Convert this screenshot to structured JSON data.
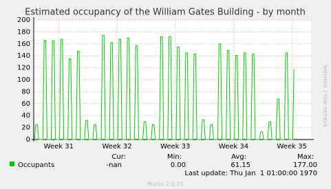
{
  "chart_data": {
    "type": "line",
    "title": "Estimated occupancy of the William Gates Building - by month",
    "side_label": "RRDTOOL / TOBI OETIKER",
    "x": [
      0.1,
      0.25,
      0.45,
      0.6,
      1.1,
      1.25,
      1.45,
      1.6,
      2.1,
      2.25,
      2.45,
      2.6,
      3.1,
      3.25,
      3.45,
      3.6,
      4.1,
      4.25,
      4.45,
      4.6,
      5.1,
      5.25,
      5.45,
      5.6,
      6.1,
      6.25,
      6.45,
      6.6,
      7.1,
      7.25,
      7.45,
      7.6,
      8.1,
      8.25,
      8.45,
      8.6,
      9.1,
      9.25,
      9.45,
      9.6,
      10.1,
      10.25,
      10.45,
      10.6,
      11.1,
      11.25,
      11.45,
      11.6,
      12.1,
      12.25,
      12.45,
      12.6,
      13.1,
      13.25,
      13.45,
      13.6,
      14.1,
      14.25,
      14.45,
      14.6,
      15.1,
      15.25,
      15.45,
      15.6,
      16.1,
      16.25,
      16.45,
      16.6,
      17.1,
      17.25,
      17.45,
      17.6,
      18.1,
      18.25,
      18.45,
      18.6,
      19.1,
      19.25,
      19.45,
      19.6,
      20.1,
      20.25,
      20.45,
      20.6,
      21.1,
      21.25,
      21.45,
      21.6,
      22.1,
      22.25,
      22.45,
      22.6,
      23.1,
      23.25,
      23.45,
      23.6,
      24.1,
      24.25,
      24.45,
      24.6,
      25.1,
      25.25,
      25.45,
      25.6,
      26.1,
      26.25,
      26.45,
      26.6,
      27.1,
      27.25,
      27.45,
      27.6,
      28.1,
      28.25,
      28.45,
      28.6,
      29.1,
      29.25,
      29.45,
      29.6,
      30.1,
      30.25,
      30.45,
      30.6,
      31.1,
      31.25
    ],
    "series": [
      {
        "name": "Occupants",
        "color": "#00cc00",
        "values": [
          0,
          25,
          25,
          0,
          0,
          166,
          166,
          0,
          0,
          165,
          165,
          0,
          0,
          168,
          168,
          0,
          0,
          135,
          135,
          0,
          0,
          148,
          148,
          0,
          0,
          32,
          32,
          0,
          0,
          25,
          25,
          0,
          0,
          174,
          174,
          0,
          0,
          162,
          162,
          0,
          0,
          168,
          168,
          0,
          0,
          170,
          170,
          0,
          0,
          157,
          157,
          0,
          0,
          30,
          30,
          0,
          0,
          25,
          25,
          0,
          0,
          172,
          172,
          0,
          0,
          172,
          172,
          0,
          0,
          155,
          155,
          0,
          0,
          145,
          145,
          0,
          0,
          143,
          143,
          0,
          0,
          33,
          33,
          0,
          0,
          25,
          25,
          0,
          0,
          160,
          160,
          0,
          0,
          149,
          149,
          0,
          0,
          141,
          141,
          0,
          0,
          145,
          145,
          0,
          0,
          143,
          143,
          0,
          0,
          13,
          13,
          0,
          0,
          30,
          30,
          0,
          0,
          68,
          68,
          0,
          0,
          145,
          145,
          0,
          0,
          118
        ]
      }
    ],
    "xlim": [
      0,
      33.3
    ],
    "xticks": [
      {
        "value": 3,
        "label": "Week 31"
      },
      {
        "value": 10,
        "label": "Week 32"
      },
      {
        "value": 17,
        "label": "Week 33"
      },
      {
        "value": 24,
        "label": "Week 34"
      },
      {
        "value": 31,
        "label": "Week 35"
      }
    ],
    "ylim": [
      0,
      200
    ],
    "yticks": [
      0,
      20,
      40,
      60,
      80,
      100,
      120,
      140,
      160,
      180,
      200
    ],
    "grid": true,
    "legend_stats": {
      "labels": [
        "Cur:",
        "Min:",
        "Avg:",
        "Max:"
      ],
      "values": [
        "-nan",
        "0.00",
        "61.15",
        "177.00"
      ]
    },
    "last_update": "Last update: Thu Jan  1 01:00:00 1970",
    "footer": "Munin 2.0.75"
  }
}
